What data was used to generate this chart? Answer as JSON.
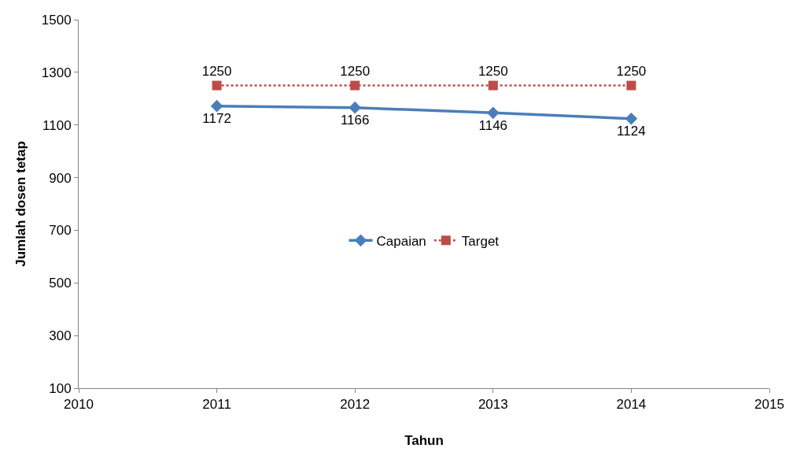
{
  "chart_data": {
    "type": "line",
    "xlabel": "Tahun",
    "ylabel": "Jumlah dosen tetap",
    "x": [
      2011,
      2012,
      2013,
      2014
    ],
    "series": [
      {
        "name": "Capaian",
        "color": "#4a7ebb",
        "values": [
          1172,
          1166,
          1146,
          1124
        ],
        "marker": "diamond",
        "line_style": "solid"
      },
      {
        "name": "Target",
        "color": "#be4b48",
        "values": [
          1250,
          1250,
          1250,
          1250
        ],
        "marker": "square",
        "line_style": "dotted"
      }
    ],
    "xlim": [
      2010,
      2015
    ],
    "xticks": [
      2010,
      2011,
      2012,
      2013,
      2014,
      2015
    ],
    "ylim": [
      100,
      1500
    ],
    "yticks": [
      100,
      300,
      500,
      700,
      900,
      1100,
      1300,
      1500
    ],
    "legend": "center",
    "data_labels": true
  }
}
